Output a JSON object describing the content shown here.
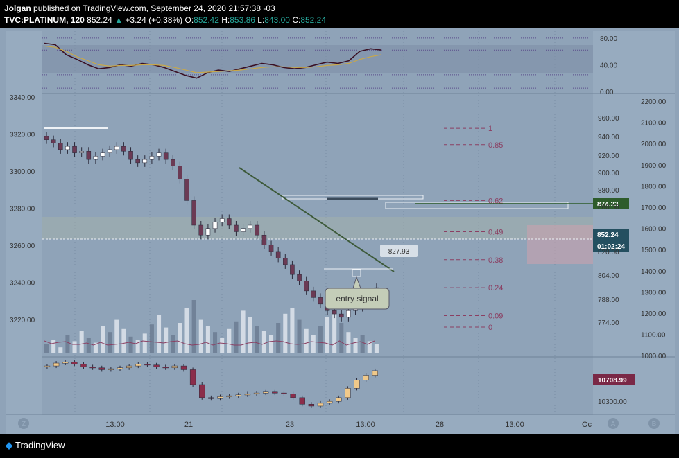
{
  "header": {
    "author": "Jolgan",
    "published": "published on TradingView.com, September 24, 2020 21:57:38 -03",
    "symbol": "TVC:PLATINUM, 120",
    "last": "852.24",
    "change_arrow": "▲",
    "change": "+3.24 (+0.38%)",
    "o_label": "O:",
    "o_val": "852.42",
    "h_label": "H:",
    "h_val": "853.86",
    "l_label": "L:",
    "l_val": "843.00",
    "c_label": "C:",
    "c_val": "852.24"
  },
  "footer": {
    "brand": "TradingView",
    "brand_icon": "tradingview-logo-icon"
  },
  "colors": {
    "background": "#8fa3b8",
    "bull": "#ffffff",
    "bear": "#6b3a54",
    "price_line": "#2e5a88",
    "trend_line": "#3d5a3a",
    "fib": "#8b3f62",
    "label_green": "#2e5c2b",
    "label_teal": "#244f60",
    "label_maroon": "#7a2846"
  },
  "chart_data": [
    {
      "type": "line",
      "panel": "oscillator",
      "y_ticks": [
        "80.00",
        "40.00",
        "0.00"
      ],
      "ylim": [
        0,
        85
      ],
      "series": [
        {
          "values": [
            72,
            70,
            55,
            48,
            40,
            34,
            36,
            40,
            38,
            42,
            40,
            36,
            30,
            24,
            20,
            28,
            32,
            30,
            34,
            38,
            42,
            40,
            36,
            34,
            36,
            40,
            44,
            42,
            46,
            60,
            64,
            62
          ]
        },
        {
          "values": [
            68,
            66,
            60,
            52,
            46,
            40,
            38,
            39,
            39,
            40,
            40,
            39,
            36,
            32,
            28,
            29,
            30,
            31,
            32,
            34,
            36,
            37,
            37,
            36,
            36,
            37,
            39,
            40,
            42,
            48,
            52,
            55
          ]
        }
      ]
    },
    {
      "type": "candlestick",
      "panel": "main",
      "left_axis_ticks": [
        "3340.00",
        "3320.00",
        "3300.00",
        "3280.00",
        "3260.00",
        "3240.00",
        "3220.00"
      ],
      "right_axis_ticks": [
        "960.00",
        "940.00",
        "920.00",
        "900.00",
        "880.00",
        "860.00",
        "820.00",
        "804.00",
        "788.00",
        "774.00"
      ],
      "far_right_ticks": [
        "2200.00",
        "2100.00",
        "2000.00",
        "1900.00",
        "1800.00",
        "1700.00",
        "1600.00",
        "1500.00",
        "1400.00",
        "1300.00",
        "1200.00",
        "1100.00",
        "1000.00"
      ],
      "ylim": [
        812,
        968
      ],
      "x_ticks": [
        "13:00",
        "21",
        "23",
        "13:00",
        "28",
        "13:00",
        "Oc"
      ],
      "close": [
        942,
        940,
        936,
        938,
        934,
        935,
        930,
        932,
        934,
        936,
        938,
        935,
        930,
        928,
        930,
        932,
        934,
        930,
        926,
        918,
        905,
        890,
        884,
        888,
        892,
        894,
        890,
        886,
        888,
        890,
        884,
        878,
        874,
        870,
        866,
        860,
        856,
        850,
        846,
        842,
        838,
        836,
        834,
        838,
        840,
        845,
        848,
        852
      ],
      "fib_levels": [
        {
          "label": "1",
          "value": 949
        },
        {
          "label": "0.85",
          "value": 939
        },
        {
          "label": "0.62",
          "value": 905
        },
        {
          "label": "0.49",
          "value": 886
        },
        {
          "label": "0.38",
          "value": 869
        },
        {
          "label": "0.24",
          "value": 852
        },
        {
          "label": "0.09",
          "value": 835
        },
        {
          "label": "0",
          "value": 828
        }
      ],
      "annotations": {
        "measure_label": "827.93",
        "callout": "entry signal",
        "price_label_green": "874.23",
        "price_label_last": "852.24",
        "countdown": "01:02:24"
      },
      "volume": [
        6,
        9,
        4,
        12,
        8,
        15,
        10,
        7,
        18,
        14,
        22,
        16,
        11,
        9,
        13,
        19,
        25,
        17,
        12,
        20,
        30,
        35,
        22,
        18,
        14,
        10,
        16,
        21,
        28,
        24,
        18,
        15,
        12,
        20,
        26,
        30,
        22,
        16,
        12,
        18,
        24,
        28,
        20,
        14,
        10,
        12,
        8,
        6
      ]
    },
    {
      "type": "candlestick",
      "panel": "lower",
      "right_label": "10708.99",
      "y_ticks": [
        "10700.00",
        "10300.00"
      ],
      "close": [
        10760,
        10790,
        10800,
        10780,
        10750,
        10740,
        10720,
        10730,
        10740,
        10760,
        10780,
        10770,
        10750,
        10740,
        10760,
        10720,
        10560,
        10420,
        10410,
        10430,
        10440,
        10450,
        10460,
        10470,
        10480,
        10470,
        10460,
        10420,
        10350,
        10330,
        10360,
        10380,
        10420,
        10520,
        10610,
        10660,
        10709
      ]
    }
  ]
}
